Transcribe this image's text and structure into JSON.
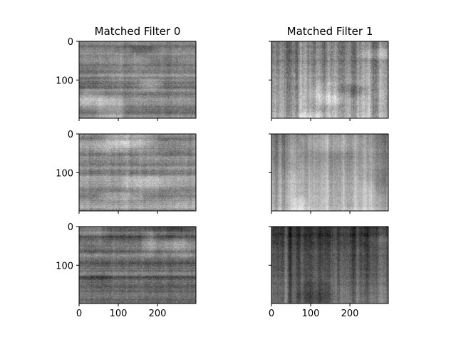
{
  "chart_data": {
    "type": "heatmap",
    "colormap": "gray",
    "panel_grid": {
      "rows": 3,
      "cols": 2
    },
    "columns": [
      {
        "title": "Matched Filter 0"
      },
      {
        "title": "Matched Filter 1"
      }
    ],
    "x_range": [
      0,
      298
    ],
    "y_range": [
      0,
      199
    ],
    "y_inverted": true,
    "x_ticks": [
      0,
      100,
      200
    ],
    "y_ticks": [
      0,
      100
    ],
    "tick_labels_x_row": 2,
    "tick_labels_y_col": 0,
    "panels": [
      {
        "row": 0,
        "col": 0,
        "mean": 0.52,
        "contrast": 0.35,
        "style": "horizontal"
      },
      {
        "row": 0,
        "col": 1,
        "mean": 0.58,
        "contrast": 0.4,
        "style": "vertical"
      },
      {
        "row": 1,
        "col": 0,
        "mean": 0.55,
        "contrast": 0.38,
        "style": "horizontal"
      },
      {
        "row": 1,
        "col": 1,
        "mean": 0.62,
        "contrast": 0.3,
        "style": "vertical"
      },
      {
        "row": 2,
        "col": 0,
        "mean": 0.4,
        "contrast": 0.35,
        "style": "horizontal"
      },
      {
        "row": 2,
        "col": 1,
        "mean": 0.33,
        "contrast": 0.3,
        "style": "vertical"
      }
    ]
  }
}
